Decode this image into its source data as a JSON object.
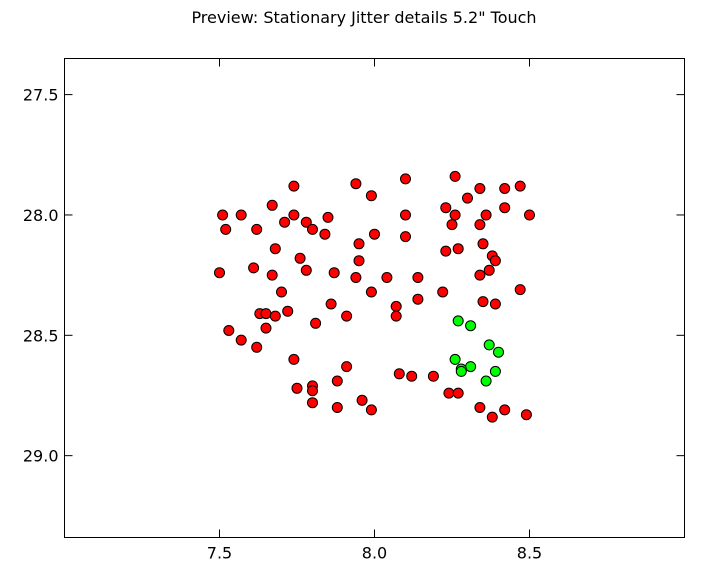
{
  "chart_data": {
    "type": "scatter",
    "title": "Preview: Stationary Jitter details 5.2\" Touch",
    "xlabel": "",
    "ylabel": "",
    "xlim": [
      7.0,
      9.0
    ],
    "ylim": [
      29.34,
      27.35
    ],
    "y_inverted": true,
    "grid": false,
    "legend": "none",
    "x_ticks": [
      7.5,
      8.0,
      8.5
    ],
    "x_tick_labels": [
      "7.5",
      "8.0",
      "8.5"
    ],
    "y_ticks": [
      27.5,
      28.0,
      28.5,
      29.0
    ],
    "y_tick_labels": [
      "27.5",
      "28.0",
      "28.5",
      "29.0"
    ],
    "series": [
      {
        "color": "#ff0000",
        "points": [
          [
            8.26,
            27.84
          ],
          [
            8.1,
            27.85
          ],
          [
            7.94,
            27.87
          ],
          [
            7.74,
            27.88
          ],
          [
            8.34,
            27.89
          ],
          [
            8.42,
            27.89
          ],
          [
            8.47,
            27.88
          ],
          [
            7.99,
            27.92
          ],
          [
            8.3,
            27.93
          ],
          [
            7.67,
            27.96
          ],
          [
            8.23,
            27.97
          ],
          [
            8.42,
            27.97
          ],
          [
            7.51,
            28.0
          ],
          [
            7.57,
            28.0
          ],
          [
            7.74,
            28.0
          ],
          [
            8.1,
            28.0
          ],
          [
            8.26,
            28.0
          ],
          [
            8.36,
            28.0
          ],
          [
            8.5,
            28.0
          ],
          [
            7.85,
            28.01
          ],
          [
            7.71,
            28.03
          ],
          [
            7.78,
            28.03
          ],
          [
            8.25,
            28.04
          ],
          [
            8.34,
            28.04
          ],
          [
            7.52,
            28.06
          ],
          [
            7.62,
            28.06
          ],
          [
            7.8,
            28.06
          ],
          [
            7.84,
            28.08
          ],
          [
            8.0,
            28.08
          ],
          [
            8.1,
            28.09
          ],
          [
            7.95,
            28.12
          ],
          [
            8.35,
            28.12
          ],
          [
            7.68,
            28.14
          ],
          [
            8.27,
            28.14
          ],
          [
            8.23,
            28.15
          ],
          [
            8.38,
            28.17
          ],
          [
            7.76,
            28.18
          ],
          [
            7.95,
            28.19
          ],
          [
            8.39,
            28.19
          ],
          [
            7.61,
            28.22
          ],
          [
            7.78,
            28.23
          ],
          [
            8.37,
            28.23
          ],
          [
            7.5,
            28.24
          ],
          [
            7.87,
            28.24
          ],
          [
            7.67,
            28.25
          ],
          [
            8.34,
            28.25
          ],
          [
            7.94,
            28.26
          ],
          [
            8.04,
            28.26
          ],
          [
            8.14,
            28.26
          ],
          [
            8.47,
            28.31
          ],
          [
            7.7,
            28.32
          ],
          [
            7.99,
            28.32
          ],
          [
            8.22,
            28.32
          ],
          [
            8.14,
            28.35
          ],
          [
            8.35,
            28.36
          ],
          [
            8.39,
            28.37
          ],
          [
            7.86,
            28.37
          ],
          [
            8.07,
            28.38
          ],
          [
            7.72,
            28.4
          ],
          [
            7.63,
            28.41
          ],
          [
            7.65,
            28.41
          ],
          [
            7.68,
            28.42
          ],
          [
            7.91,
            28.42
          ],
          [
            8.07,
            28.42
          ],
          [
            7.81,
            28.45
          ],
          [
            7.65,
            28.47
          ],
          [
            7.53,
            28.48
          ],
          [
            7.57,
            28.52
          ],
          [
            7.62,
            28.55
          ],
          [
            7.74,
            28.6
          ],
          [
            7.91,
            28.63
          ],
          [
            8.08,
            28.66
          ],
          [
            8.12,
            28.67
          ],
          [
            8.19,
            28.67
          ],
          [
            7.88,
            28.69
          ],
          [
            7.8,
            28.71
          ],
          [
            7.75,
            28.72
          ],
          [
            7.8,
            28.73
          ],
          [
            8.24,
            28.74
          ],
          [
            8.27,
            28.74
          ],
          [
            7.96,
            28.77
          ],
          [
            7.8,
            28.78
          ],
          [
            7.88,
            28.8
          ],
          [
            7.99,
            28.81
          ],
          [
            8.34,
            28.8
          ],
          [
            8.42,
            28.81
          ],
          [
            8.38,
            28.84
          ],
          [
            8.49,
            28.83
          ]
        ]
      },
      {
        "color": "#00ff00",
        "points": [
          [
            8.27,
            28.44
          ],
          [
            8.31,
            28.46
          ],
          [
            8.37,
            28.54
          ],
          [
            8.4,
            28.57
          ],
          [
            8.26,
            28.6
          ],
          [
            8.31,
            28.63
          ],
          [
            8.28,
            28.64
          ],
          [
            8.28,
            28.65
          ],
          [
            8.39,
            28.65
          ],
          [
            8.36,
            28.69
          ]
        ]
      }
    ]
  }
}
